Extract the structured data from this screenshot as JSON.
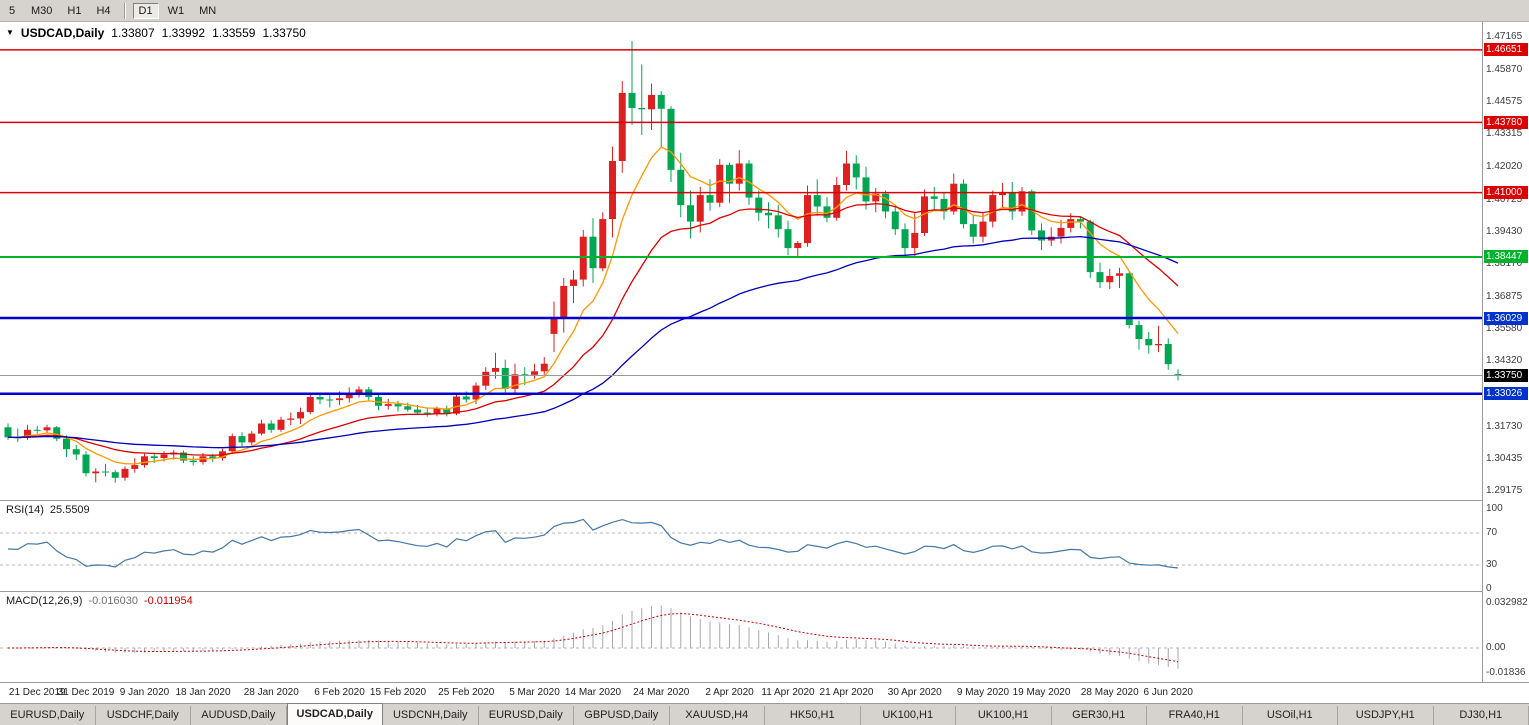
{
  "toolbar": {
    "period_buttons": [
      "5",
      "M30",
      "H1",
      "H4",
      "D1",
      "W1",
      "MN"
    ],
    "active_period": "D1",
    "separator_after": "H4"
  },
  "chart_title": {
    "dropdown_icon": "▼",
    "symbol": "USDCAD,Daily",
    "open": "1.33807",
    "high": "1.33992",
    "low": "1.33559",
    "close": "1.33750"
  },
  "rsi_panel": {
    "label": "RSI(14)",
    "value": "25.5509",
    "axis_labels": [
      "100",
      "70",
      "30",
      "0"
    ]
  },
  "macd_panel": {
    "label": "MACD(12,26,9)",
    "main_value": "-0.016030",
    "signal_value": "-0.011954",
    "axis_labels": [
      "0.032982",
      "0.00",
      "-0.01836"
    ]
  },
  "price_axis": {
    "labels": [
      "1.47165",
      "1.45870",
      "1.44575",
      "1.43315",
      "1.42020",
      "1.40725",
      "1.39430",
      "1.38170",
      "1.36875",
      "1.35580",
      "1.34320",
      "1.31730",
      "1.30435",
      "1.29175"
    ],
    "badges": [
      {
        "label": "1.46651",
        "price": 1.46651,
        "color": "#dd0000"
      },
      {
        "label": "1.43780",
        "price": 1.4378,
        "color": "#dd0000"
      },
      {
        "label": "1.41000",
        "price": 1.41,
        "color": "#dd0000"
      },
      {
        "label": "1.38447",
        "price": 1.38447,
        "color": "#00b32c"
      },
      {
        "label": "1.36029",
        "price": 1.36029,
        "color": "#0033cc"
      },
      {
        "label": "1.33026",
        "price": 1.33026,
        "color": "#0033cc"
      },
      {
        "label": "1.33750",
        "price": 1.3375,
        "color": "#000000"
      }
    ]
  },
  "tabs": {
    "items": [
      "EURUSD,Daily",
      "USDCHF,Daily",
      "AUDUSD,Daily",
      "USDCAD,Daily",
      "USDCNH,Daily",
      "EURUSD,Daily",
      "GBPUSD,Daily",
      "XAUUSD,H4",
      "HK50,H1",
      "UK100,H1",
      "UK100,H1",
      "GER30,H1",
      "FRA40,H1",
      "USOil,H1",
      "USDJPY,H1",
      "DJ30,H1"
    ],
    "active_index": 3
  },
  "chart_data": {
    "type": "candlestick",
    "symbol": "USDCAD",
    "timeframe": "Daily",
    "price_range": {
      "top": 1.47758,
      "bottom": 1.28819
    },
    "candle_colors": {
      "bull": "#dd2020",
      "bear": "#00a651"
    },
    "level_lines": [
      {
        "price": 1.46651,
        "color": "#dd0000",
        "width": 1.5
      },
      {
        "price": 1.4378,
        "color": "#dd0000",
        "width": 1.5
      },
      {
        "price": 1.41,
        "color": "#dd0000",
        "width": 1.5
      },
      {
        "price": 1.38447,
        "color": "#00b32c",
        "width": 2
      },
      {
        "price": 1.36029,
        "color": "#0000d0",
        "width": 2.5
      },
      {
        "price": 1.33026,
        "color": "#0000d0",
        "width": 2.5
      }
    ],
    "current_price": {
      "price": 1.3375,
      "line_color": "#9a9a9a"
    },
    "moving_averages": [
      {
        "period": 8,
        "color": "#ff9900"
      },
      {
        "period": 21,
        "color": "#dd0000"
      },
      {
        "period": 55,
        "color": "#0000bb"
      }
    ],
    "rsi": {
      "period": 14,
      "color": "#4477aa",
      "dashed_levels": [
        70,
        30
      ],
      "last": 25.5509
    },
    "macd": {
      "fast": 12,
      "slow": 26,
      "signal": 9,
      "histogram_color": "#a8a8a8",
      "signal_color": "#cc0000",
      "last_main": -0.01603,
      "last_signal": -0.011954,
      "scale_max": 0.032982,
      "scale_min": -0.01836
    },
    "x_ticks": [
      {
        "i": 3,
        "label": "21 Dec 2019"
      },
      {
        "i": 8,
        "label": "31 Dec 2019"
      },
      {
        "i": 14,
        "label": "9 Jan 2020"
      },
      {
        "i": 20,
        "label": "18 Jan 2020"
      },
      {
        "i": 27,
        "label": "28 Jan 2020"
      },
      {
        "i": 34,
        "label": "6 Feb 2020"
      },
      {
        "i": 40,
        "label": "15 Feb 2020"
      },
      {
        "i": 47,
        "label": "25 Feb 2020"
      },
      {
        "i": 54,
        "label": "5 Mar 2020"
      },
      {
        "i": 60,
        "label": "14 Mar 2020"
      },
      {
        "i": 67,
        "label": "24 Mar 2020"
      },
      {
        "i": 74,
        "label": "2 Apr 2020"
      },
      {
        "i": 80,
        "label": "11 Apr 2020"
      },
      {
        "i": 86,
        "label": "21 Apr 2020"
      },
      {
        "i": 93,
        "label": "30 Apr 2020"
      },
      {
        "i": 100,
        "label": "9 May 2020"
      },
      {
        "i": 106,
        "label": "19 May 2020"
      },
      {
        "i": 113,
        "label": "28 May 2020"
      },
      {
        "i": 119,
        "label": "6 Jun 2020"
      }
    ],
    "candles": [
      [
        1.317,
        1.3185,
        1.312,
        1.313
      ],
      [
        1.313,
        1.3165,
        1.3112,
        1.3128
      ],
      [
        1.3128,
        1.318,
        1.312,
        1.316
      ],
      [
        1.316,
        1.3175,
        1.3145,
        1.3158
      ],
      [
        1.3158,
        1.318,
        1.3148,
        1.317
      ],
      [
        1.317,
        1.3175,
        1.3115,
        1.3125
      ],
      [
        1.3125,
        1.3138,
        1.3052,
        1.3083
      ],
      [
        1.3083,
        1.31,
        1.304,
        1.3062
      ],
      [
        1.3062,
        1.3075,
        1.2975,
        1.2988
      ],
      [
        1.2988,
        1.3008,
        1.2952,
        1.2995
      ],
      [
        1.2995,
        1.3025,
        1.2975,
        1.2992
      ],
      [
        1.2992,
        1.3,
        1.295,
        1.297
      ],
      [
        1.297,
        1.3015,
        1.2958,
        1.3005
      ],
      [
        1.3005,
        1.3048,
        1.299,
        1.302
      ],
      [
        1.302,
        1.3065,
        1.301,
        1.3055
      ],
      [
        1.3055,
        1.307,
        1.3028,
        1.3048
      ],
      [
        1.3048,
        1.3075,
        1.3035,
        1.3062
      ],
      [
        1.3062,
        1.308,
        1.3042,
        1.307
      ],
      [
        1.307,
        1.3078,
        1.3028,
        1.3038
      ],
      [
        1.3038,
        1.3055,
        1.3018,
        1.3032
      ],
      [
        1.3032,
        1.3068,
        1.3022,
        1.3055
      ],
      [
        1.3055,
        1.3065,
        1.3033,
        1.3048
      ],
      [
        1.3048,
        1.3085,
        1.3038,
        1.3075
      ],
      [
        1.3075,
        1.3145,
        1.3065,
        1.3135
      ],
      [
        1.3135,
        1.315,
        1.3092,
        1.311
      ],
      [
        1.311,
        1.3155,
        1.3098,
        1.3145
      ],
      [
        1.3145,
        1.32,
        1.3138,
        1.3185
      ],
      [
        1.3185,
        1.3198,
        1.3148,
        1.316
      ],
      [
        1.316,
        1.3212,
        1.3152,
        1.32
      ],
      [
        1.32,
        1.3228,
        1.3178,
        1.3205
      ],
      [
        1.3205,
        1.3248,
        1.3183,
        1.323
      ],
      [
        1.323,
        1.3302,
        1.3222,
        1.329
      ],
      [
        1.329,
        1.3305,
        1.3262,
        1.328
      ],
      [
        1.328,
        1.33,
        1.3248,
        1.3278
      ],
      [
        1.3278,
        1.3312,
        1.3258,
        1.3285
      ],
      [
        1.3285,
        1.3328,
        1.3268,
        1.3305
      ],
      [
        1.3305,
        1.3332,
        1.3288,
        1.332
      ],
      [
        1.332,
        1.333,
        1.3272,
        1.329
      ],
      [
        1.329,
        1.3298,
        1.3238,
        1.3255
      ],
      [
        1.3255,
        1.3282,
        1.324,
        1.3262
      ],
      [
        1.3262,
        1.3275,
        1.3232,
        1.3253
      ],
      [
        1.3253,
        1.3268,
        1.3232,
        1.324
      ],
      [
        1.324,
        1.3258,
        1.3222,
        1.3228
      ],
      [
        1.3228,
        1.3246,
        1.3212,
        1.3224
      ],
      [
        1.3224,
        1.3252,
        1.3214,
        1.3245
      ],
      [
        1.3245,
        1.3256,
        1.3213,
        1.3224
      ],
      [
        1.3224,
        1.3305,
        1.3218,
        1.3292
      ],
      [
        1.3292,
        1.3312,
        1.3268,
        1.328
      ],
      [
        1.328,
        1.3348,
        1.3262,
        1.3335
      ],
      [
        1.3335,
        1.3408,
        1.3318,
        1.339
      ],
      [
        1.339,
        1.3465,
        1.3362,
        1.3405
      ],
      [
        1.3405,
        1.3438,
        1.3302,
        1.3322
      ],
      [
        1.3322,
        1.3422,
        1.3298,
        1.338
      ],
      [
        1.338,
        1.3408,
        1.3338,
        1.3378
      ],
      [
        1.3378,
        1.3422,
        1.3362,
        1.3392
      ],
      [
        1.3392,
        1.3448,
        1.3378,
        1.3422
      ],
      [
        1.354,
        1.3668,
        1.3468,
        1.3605
      ],
      [
        1.3605,
        1.3762,
        1.3545,
        1.373
      ],
      [
        1.373,
        1.3792,
        1.3662,
        1.3755
      ],
      [
        1.3755,
        1.3952,
        1.3728,
        1.3925
      ],
      [
        1.3925,
        1.3998,
        1.3742,
        1.38
      ],
      [
        1.38,
        1.4022,
        1.3788,
        1.3995
      ],
      [
        1.3995,
        1.4282,
        1.3922,
        1.4225
      ],
      [
        1.4225,
        1.4542,
        1.4178,
        1.4495
      ],
      [
        1.4495,
        1.47,
        1.4368,
        1.4435
      ],
      [
        1.4435,
        1.4608,
        1.4328,
        1.443
      ],
      [
        1.443,
        1.4532,
        1.4348,
        1.4487
      ],
      [
        1.4487,
        1.4502,
        1.4278,
        1.4432
      ],
      [
        1.4432,
        1.4442,
        1.4142,
        1.419
      ],
      [
        1.419,
        1.4258,
        1.4002,
        1.405
      ],
      [
        1.405,
        1.4108,
        1.3918,
        1.3985
      ],
      [
        1.3985,
        1.4122,
        1.3942,
        1.409
      ],
      [
        1.409,
        1.4152,
        1.4028,
        1.406
      ],
      [
        1.406,
        1.4232,
        1.4042,
        1.421
      ],
      [
        1.421,
        1.4218,
        1.4058,
        1.4135
      ],
      [
        1.4135,
        1.4268,
        1.4108,
        1.4215
      ],
      [
        1.4215,
        1.4228,
        1.4052,
        1.408
      ],
      [
        1.408,
        1.4108,
        1.3988,
        1.402
      ],
      [
        1.402,
        1.4062,
        1.3958,
        1.401
      ],
      [
        1.401,
        1.4052,
        1.3922,
        1.3955
      ],
      [
        1.3955,
        1.3988,
        1.3852,
        1.388
      ],
      [
        1.388,
        1.3908,
        1.3848,
        1.39
      ],
      [
        1.39,
        1.4128,
        1.3885,
        1.409
      ],
      [
        1.409,
        1.4152,
        1.4008,
        1.4045
      ],
      [
        1.4045,
        1.4082,
        1.3982,
        1.4
      ],
      [
        1.4,
        1.4162,
        1.3988,
        1.413
      ],
      [
        1.413,
        1.4265,
        1.4108,
        1.4215
      ],
      [
        1.4215,
        1.4248,
        1.4112,
        1.416
      ],
      [
        1.416,
        1.4202,
        1.4032,
        1.4065
      ],
      [
        1.4065,
        1.4118,
        1.4022,
        1.4095
      ],
      [
        1.4095,
        1.4108,
        1.3998,
        1.4025
      ],
      [
        1.4025,
        1.4048,
        1.3932,
        1.3955
      ],
      [
        1.3955,
        1.3978,
        1.3848,
        1.388
      ],
      [
        1.388,
        1.4022,
        1.3842,
        1.394
      ],
      [
        1.394,
        1.4112,
        1.3928,
        1.4085
      ],
      [
        1.4085,
        1.4122,
        1.4032,
        1.4075
      ],
      [
        1.4075,
        1.4098,
        1.3992,
        1.4025
      ],
      [
        1.4025,
        1.4175,
        1.4012,
        1.4135
      ],
      [
        1.4135,
        1.4152,
        1.3958,
        1.3975
      ],
      [
        1.3975,
        1.4012,
        1.3898,
        1.3925
      ],
      [
        1.3925,
        1.4022,
        1.3902,
        1.3985
      ],
      [
        1.3985,
        1.4108,
        1.3962,
        1.409
      ],
      [
        1.409,
        1.4138,
        1.4042,
        1.41
      ],
      [
        1.41,
        1.4142,
        1.3992,
        1.4025
      ],
      [
        1.4025,
        1.4122,
        1.4008,
        1.4105
      ],
      [
        1.4105,
        1.4112,
        1.3932,
        1.395
      ],
      [
        1.395,
        1.3978,
        1.3872,
        1.391
      ],
      [
        1.391,
        1.3962,
        1.3888,
        1.3925
      ],
      [
        1.3925,
        1.3992,
        1.3898,
        1.396
      ],
      [
        1.396,
        1.4018,
        1.3942,
        1.3995
      ],
      [
        1.3995,
        1.4002,
        1.3958,
        1.3985
      ],
      [
        1.3985,
        1.3992,
        1.3762,
        1.3785
      ],
      [
        1.3785,
        1.3822,
        1.3722,
        1.3745
      ],
      [
        1.3745,
        1.3798,
        1.3718,
        1.377
      ],
      [
        1.377,
        1.3802,
        1.3722,
        1.378
      ],
      [
        1.378,
        1.3788,
        1.3562,
        1.3575
      ],
      [
        1.3575,
        1.3592,
        1.3478,
        1.352
      ],
      [
        1.352,
        1.3548,
        1.3462,
        1.3495
      ],
      [
        1.3495,
        1.3572,
        1.3468,
        1.35
      ],
      [
        1.35,
        1.3522,
        1.3398,
        1.342
      ],
      [
        1.33807,
        1.33992,
        1.33559,
        1.3375
      ]
    ]
  }
}
